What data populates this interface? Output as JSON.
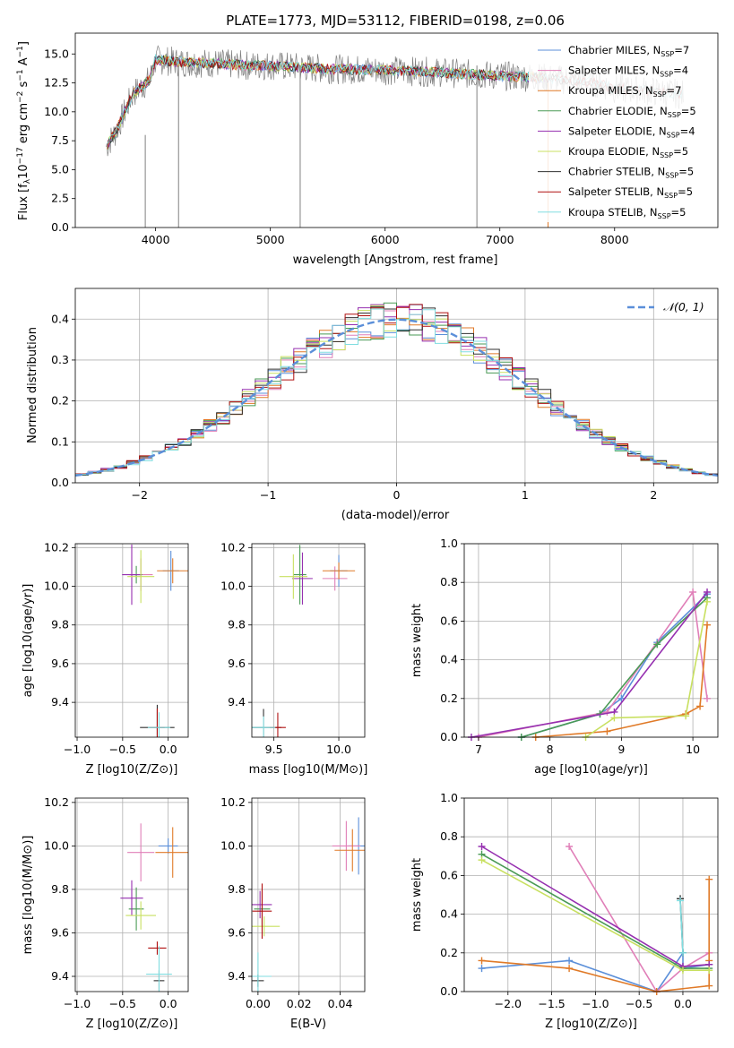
{
  "spectrum": {
    "title": "PLATE=1773, MJD=53112, FIBERID=0198, z=0.06",
    "xlabel": "wavelength [Angstrom, rest frame]",
    "ylabel": "Flux [f_λ 10^-17 erg cm^-2 s^-1 A^-1]",
    "x_ticks": [
      "4000",
      "5000",
      "6000",
      "7000",
      "8000"
    ],
    "y_ticks": [
      "0.0",
      "2.5",
      "5.0",
      "7.5",
      "10.0",
      "12.5",
      "15.0"
    ],
    "legend": [
      {
        "text": "Chabrier MILES, N_SSP=7",
        "color": "#5b8fd9"
      },
      {
        "text": "Salpeter MILES, N_SSP=4",
        "color": "#e07fb8"
      },
      {
        "text": "Kroupa MILES, N_SSP=7",
        "color": "#e07a28"
      },
      {
        "text": "Chabrier ELODIE, N_SSP=5",
        "color": "#4a9a55"
      },
      {
        "text": "Salpeter ELODIE, N_SSP=4",
        "color": "#9630b0"
      },
      {
        "text": "Kroupa ELODIE, N_SSP=5",
        "color": "#c8e060"
      },
      {
        "text": "Chabrier STELIB, N_SSP=5",
        "color": "#303030"
      },
      {
        "text": "Salpeter STELIB, N_SSP=5",
        "color": "#b01010"
      },
      {
        "text": "Kroupa STELIB, N_SSP=5",
        "color": "#80dde0"
      }
    ]
  },
  "histogram": {
    "xlabel": "(data-model)/error",
    "ylabel": "Normed distribution",
    "x_ticks": [
      "−2",
      "−1",
      "0",
      "1",
      "2"
    ],
    "y_ticks": [
      "0.0",
      "0.1",
      "0.2",
      "0.3",
      "0.4"
    ],
    "legend": "𝒩(0, 1)"
  },
  "small_panels": {
    "age_z": {
      "xlabel": "Z [log10(Z/Z⊙)]",
      "ylabel": "age  [log10(age/yr)]",
      "x_ticks": [
        "−1.0",
        "−0.5",
        "0.0"
      ],
      "y_ticks": [
        "9.4",
        "9.6",
        "9.8",
        "10.0",
        "10.2"
      ]
    },
    "age_mass": {
      "xlabel": "mass [log10(M/M⊙)]",
      "x_ticks": [
        "9.5",
        "10.0"
      ],
      "y_ticks": [
        "9.4",
        "9.6",
        "9.8",
        "10.0",
        "10.2"
      ]
    },
    "mw_age": {
      "xlabel": "age  [log10(age/yr)]",
      "ylabel": "mass weight",
      "x_ticks": [
        "7",
        "8",
        "9",
        "10"
      ],
      "y_ticks": [
        "0.0",
        "0.2",
        "0.4",
        "0.6",
        "0.8",
        "1.0"
      ]
    },
    "mass_z": {
      "xlabel": "Z [log10(Z/Z⊙)]",
      "ylabel": "mass [log10(M/M⊙)]",
      "x_ticks": [
        "−1.0",
        "−0.5",
        "0.0"
      ],
      "y_ticks": [
        "9.4",
        "9.6",
        "9.8",
        "10.0",
        "10.2"
      ]
    },
    "mass_ebv": {
      "xlabel": "E(B-V)",
      "x_ticks": [
        "0.00",
        "0.02",
        "0.04"
      ],
      "y_ticks": [
        "9.4",
        "9.6",
        "9.8",
        "10.0",
        "10.2"
      ]
    },
    "mw_z": {
      "xlabel": "Z [log10(Z/Z⊙)]",
      "ylabel": "mass weight",
      "x_ticks": [
        "−2.0",
        "−1.5",
        "−1.0",
        "−0.5",
        "0.0"
      ],
      "y_ticks": [
        "0.0",
        "0.2",
        "0.4",
        "0.6",
        "0.8",
        "1.0"
      ]
    }
  },
  "colors": [
    "#5b8fd9",
    "#e07fb8",
    "#e07a28",
    "#4a9a55",
    "#9630b0",
    "#c8e060",
    "#303030",
    "#b01010",
    "#80dde0"
  ],
  "chart_data": [
    {
      "type": "line",
      "title": "PLATE=1773, MJD=53112, FIBERID=0198, z=0.06",
      "xlabel": "wavelength [Angstrom, rest frame]",
      "ylabel": "Flux [f_λ 10^-17 erg cm^-2 s^-1 A^-1]",
      "xlim": [
        3300,
        8900
      ],
      "ylim": [
        0,
        16.8
      ],
      "grid": false,
      "legend": "top-right",
      "data_envelope": {
        "x": [
          3570,
          3650,
          3800,
          3950,
          4000,
          4200,
          4500,
          4800,
          5000,
          5500,
          6000,
          6500,
          7000,
          7300,
          7500,
          7800,
          8000,
          8300,
          8600
        ],
        "y": [
          7.0,
          8.2,
          11.5,
          12.8,
          14.5,
          14.3,
          14.2,
          14.0,
          14.0,
          13.7,
          13.6,
          13.4,
          13.1,
          13.0,
          12.8,
          12.6,
          12.0,
          11.8,
          11.5
        ]
      }
    },
    {
      "type": "bar",
      "xlabel": "(data-model)/error",
      "ylabel": "Normed distribution",
      "xlim": [
        -2.5,
        2.5
      ],
      "ylim": [
        0,
        0.475
      ],
      "grid": true,
      "legend": "top-right",
      "series_note": "nine overlapping step histograms, one per model; reference curve N(0,1)"
    },
    {
      "type": "scatter",
      "xlabel": "Z [log10(Z/Z⊙)]",
      "ylabel": "age  [log10(age/yr)]",
      "xlim": [
        -1.02,
        0.22
      ],
      "ylim": [
        9.22,
        10.22
      ],
      "points": [
        {
          "x": 0.03,
          "y": 10.08,
          "color": "#5b8fd9"
        },
        {
          "x": -0.3,
          "y": 10.06,
          "color": "#e07fb8"
        },
        {
          "x": 0.05,
          "y": 10.08,
          "color": "#e07a28"
        },
        {
          "x": -0.35,
          "y": 10.06,
          "color": "#4a9a55"
        },
        {
          "x": -0.4,
          "y": 10.06,
          "color": "#9630b0"
        },
        {
          "x": -0.3,
          "y": 10.05,
          "color": "#c8e060"
        },
        {
          "x": -0.12,
          "y": 9.27,
          "color": "#303030"
        },
        {
          "x": -0.12,
          "y": 9.27,
          "color": "#b01010"
        },
        {
          "x": -0.1,
          "y": 9.27,
          "color": "#80dde0"
        }
      ]
    },
    {
      "type": "scatter",
      "xlabel": "mass [log10(M/M⊙)]",
      "xlim": [
        9.33,
        10.2
      ],
      "ylim": [
        9.22,
        10.22
      ],
      "points": [
        {
          "x": 10.0,
          "y": 10.08,
          "color": "#5b8fd9"
        },
        {
          "x": 9.97,
          "y": 10.04,
          "color": "#e07fb8"
        },
        {
          "x": 10.0,
          "y": 10.08,
          "color": "#e07a28"
        },
        {
          "x": 9.7,
          "y": 10.06,
          "color": "#4a9a55"
        },
        {
          "x": 9.72,
          "y": 10.04,
          "color": "#9630b0"
        },
        {
          "x": 9.65,
          "y": 10.05,
          "color": "#c8e060"
        },
        {
          "x": 9.42,
          "y": 9.27,
          "color": "#303030"
        },
        {
          "x": 9.53,
          "y": 9.27,
          "color": "#b01010"
        },
        {
          "x": 9.42,
          "y": 9.27,
          "color": "#80dde0"
        }
      ]
    },
    {
      "type": "line",
      "xlabel": "age  [log10(age/yr)]",
      "ylabel": "mass weight",
      "xlim": [
        6.8,
        10.35
      ],
      "ylim": [
        0,
        1.0
      ],
      "grid": true,
      "series": [
        {
          "x": [
            7.6,
            8.7,
            9.0,
            9.5,
            10.2
          ],
          "y": [
            0.0,
            0.12,
            0.2,
            0.49,
            0.74
          ],
          "color": "#5b8fd9"
        },
        {
          "x": [
            7.0,
            8.8,
            10.0,
            10.2
          ],
          "y": [
            0.0,
            0.13,
            0.75,
            0.2
          ],
          "color": "#e07fb8"
        },
        {
          "x": [
            7.8,
            8.8,
            9.9,
            10.1,
            10.2
          ],
          "y": [
            0.0,
            0.03,
            0.12,
            0.16,
            0.58
          ],
          "color": "#e07a28"
        },
        {
          "x": [
            7.6,
            8.7,
            9.5,
            10.2
          ],
          "y": [
            0.0,
            0.12,
            0.48,
            0.72
          ],
          "color": "#4a9a55"
        },
        {
          "x": [
            6.9,
            8.9,
            10.2
          ],
          "y": [
            0.0,
            0.13,
            0.75
          ],
          "color": "#9630b0"
        },
        {
          "x": [
            8.5,
            8.9,
            9.9,
            10.2
          ],
          "y": [
            0.0,
            0.1,
            0.11,
            0.7
          ],
          "color": "#c8e060"
        }
      ]
    },
    {
      "type": "scatter",
      "xlabel": "Z [log10(Z/Z⊙)]",
      "ylabel": "mass [log10(M/M⊙)]",
      "xlim": [
        -1.02,
        0.22
      ],
      "ylim": [
        9.33,
        10.22
      ],
      "points": [
        {
          "x": 0.0,
          "y": 10.0,
          "color": "#5b8fd9"
        },
        {
          "x": -0.3,
          "y": 9.97,
          "color": "#e07fb8"
        },
        {
          "x": 0.05,
          "y": 9.97,
          "color": "#e07a28"
        },
        {
          "x": -0.35,
          "y": 9.71,
          "color": "#4a9a55"
        },
        {
          "x": -0.4,
          "y": 9.76,
          "color": "#9630b0"
        },
        {
          "x": -0.3,
          "y": 9.68,
          "color": "#c8e060"
        },
        {
          "x": -0.1,
          "y": 9.38,
          "color": "#303030"
        },
        {
          "x": -0.12,
          "y": 9.53,
          "color": "#b01010"
        },
        {
          "x": -0.1,
          "y": 9.41,
          "color": "#80dde0"
        }
      ]
    },
    {
      "type": "scatter",
      "xlabel": "E(B-V)",
      "xlim": [
        -0.003,
        0.052
      ],
      "ylim": [
        9.33,
        10.22
      ],
      "points": [
        {
          "x": 0.049,
          "y": 10.0,
          "color": "#5b8fd9"
        },
        {
          "x": 0.043,
          "y": 10.0,
          "color": "#e07fb8"
        },
        {
          "x": 0.046,
          "y": 9.98,
          "color": "#e07a28"
        },
        {
          "x": 0.002,
          "y": 9.71,
          "color": "#4a9a55"
        },
        {
          "x": 0.001,
          "y": 9.73,
          "color": "#9630b0"
        },
        {
          "x": 0.003,
          "y": 9.63,
          "color": "#c8e060"
        },
        {
          "x": 0.0,
          "y": 9.38,
          "color": "#303030"
        },
        {
          "x": 0.002,
          "y": 9.7,
          "color": "#b01010"
        },
        {
          "x": 0.0,
          "y": 9.4,
          "color": "#80dde0"
        }
      ]
    },
    {
      "type": "line",
      "xlabel": "Z [log10(Z/Z⊙)]",
      "ylabel": "mass weight",
      "xlim": [
        -2.5,
        0.4
      ],
      "ylim": [
        0,
        1.0
      ],
      "grid": true,
      "series": [
        {
          "x": [
            -2.3,
            -1.3,
            -0.3,
            0.0,
            0.0,
            0.3
          ],
          "y": [
            0.12,
            0.16,
            0.0,
            0.2,
            0.12,
            0.14
          ],
          "color": "#5b8fd9"
        },
        {
          "x": [
            -1.3,
            -0.3,
            0.0,
            0.3
          ],
          "y": [
            0.75,
            0.0,
            0.12,
            0.2
          ],
          "color": "#e07fb8"
        },
        {
          "x": [
            -2.3,
            -1.3,
            -0.3,
            0.3,
            0.3,
            0.3
          ],
          "y": [
            0.16,
            0.12,
            0.0,
            0.03,
            0.58,
            0.16
          ],
          "color": "#e07a28"
        },
        {
          "x": [
            -2.3,
            0.0,
            0.3
          ],
          "y": [
            0.71,
            0.12,
            0.12
          ],
          "color": "#4a9a55"
        },
        {
          "x": [
            -2.3,
            0.0,
            0.3
          ],
          "y": [
            0.75,
            0.13,
            0.14
          ],
          "color": "#9630b0"
        },
        {
          "x": [
            -2.3,
            0.0,
            0.3
          ],
          "y": [
            0.68,
            0.11,
            0.11
          ],
          "color": "#c8e060"
        },
        {
          "x": [
            -0.03,
            0.0
          ],
          "y": [
            0.48,
            0.2
          ],
          "color": "#303030"
        },
        {
          "x": [
            -0.03,
            0.0
          ],
          "y": [
            0.47,
            0.2
          ],
          "color": "#80dde0"
        }
      ]
    }
  ]
}
